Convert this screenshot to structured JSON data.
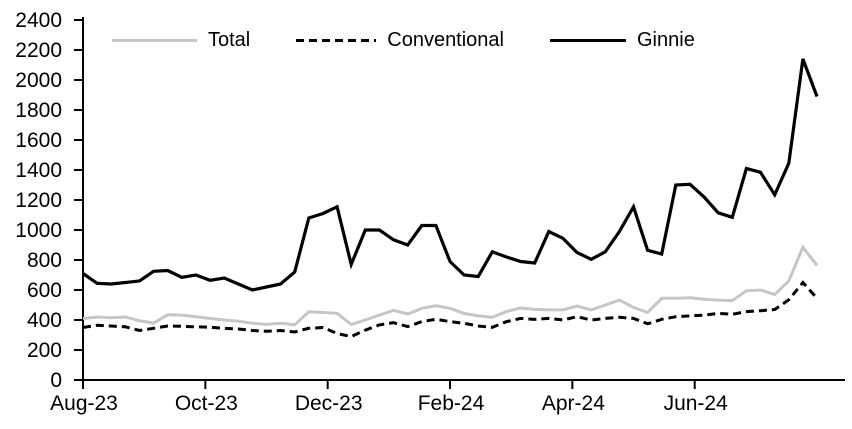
{
  "chart_data": {
    "type": "line",
    "title": "",
    "xlabel": "",
    "ylabel": "",
    "ylim": [
      0,
      2400
    ],
    "y_ticks": [
      0,
      200,
      400,
      600,
      800,
      1000,
      1200,
      1400,
      1600,
      1800,
      2000,
      2200,
      2400
    ],
    "x_tick_labels": [
      "Aug-23",
      "Oct-23",
      "Dec-23",
      "Feb-24",
      "Apr-24",
      "Jun-24"
    ],
    "x_frequency": "weekly",
    "grid": "off",
    "legend_position": "top",
    "axis_color": "#000000",
    "series": [
      {
        "name": "Total",
        "color": "#c6c6c6",
        "style": "solid",
        "values": [
          410,
          420,
          415,
          420,
          395,
          380,
          435,
          433,
          422,
          411,
          400,
          393,
          378,
          371,
          378,
          368,
          455,
          450,
          445,
          370,
          400,
          433,
          465,
          440,
          478,
          495,
          478,
          444,
          427,
          418,
          456,
          480,
          471,
          467,
          467,
          493,
          467,
          500,
          533,
          484,
          450,
          545,
          545,
          548,
          538,
          533,
          529,
          595,
          600,
          570,
          660,
          885,
          765
        ]
      },
      {
        "name": "Conventional",
        "color": "#000000",
        "style": "dashed",
        "values": [
          350,
          365,
          360,
          355,
          330,
          345,
          360,
          358,
          355,
          352,
          345,
          340,
          330,
          325,
          330,
          320,
          345,
          350,
          310,
          289,
          333,
          367,
          382,
          356,
          389,
          405,
          389,
          378,
          360,
          351,
          389,
          411,
          404,
          411,
          400,
          422,
          400,
          411,
          418,
          411,
          375,
          405,
          422,
          427,
          433,
          444,
          438,
          456,
          462,
          470,
          535,
          650,
          545
        ]
      },
      {
        "name": "Ginnie",
        "color": "#000000",
        "style": "solid",
        "values": [
          710,
          645,
          640,
          650,
          660,
          725,
          730,
          685,
          700,
          665,
          680,
          640,
          600,
          620,
          640,
          720,
          1080,
          1110,
          1155,
          770,
          1000,
          1000,
          935,
          900,
          1030,
          1030,
          790,
          700,
          690,
          855,
          820,
          790,
          780,
          990,
          945,
          850,
          805,
          855,
          990,
          1155,
          865,
          840,
          1300,
          1305,
          1220,
          1115,
          1085,
          1410,
          1385,
          1235,
          1445,
          2140,
          1890
        ]
      }
    ]
  }
}
